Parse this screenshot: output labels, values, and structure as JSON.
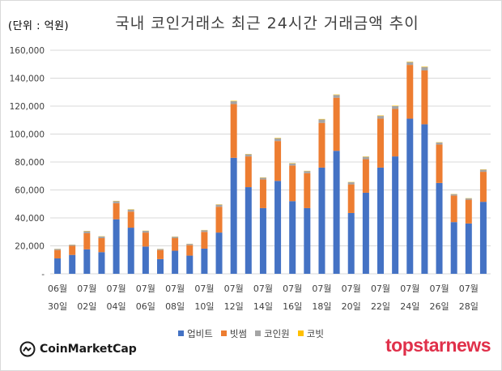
{
  "chart_data": {
    "type": "bar",
    "stacked": true,
    "title": "국내 코인거래소 최근 24시간 거래금액 추이",
    "unit_label": "(단위 : 억원)",
    "ylim": [
      0,
      160000
    ],
    "yticks": [
      0,
      20000,
      40000,
      60000,
      80000,
      100000,
      120000,
      140000,
      160000
    ],
    "ytick_labels": [
      "-",
      "20,000",
      "40,000",
      "60,000",
      "80,000",
      "100,000",
      "120,000",
      "140,000",
      "160,000"
    ],
    "grid": true,
    "legend_position": "bottom",
    "x_tick_labels": [
      {
        "month": "06월",
        "day": "30일"
      },
      {
        "month": "07월",
        "day": "02일"
      },
      {
        "month": "07월",
        "day": "04일"
      },
      {
        "month": "07월",
        "day": "06일"
      },
      {
        "month": "07월",
        "day": "08일"
      },
      {
        "month": "07월",
        "day": "10일"
      },
      {
        "month": "07월",
        "day": "12일"
      },
      {
        "month": "07월",
        "day": "14일"
      },
      {
        "month": "07월",
        "day": "16일"
      },
      {
        "month": "07월",
        "day": "18일"
      },
      {
        "month": "07월",
        "day": "20일"
      },
      {
        "month": "07월",
        "day": "22일"
      },
      {
        "month": "07월",
        "day": "24일"
      },
      {
        "month": "07월",
        "day": "26일"
      },
      {
        "month": "07월",
        "day": "28일"
      }
    ],
    "categories": [
      "06-30",
      "07-01",
      "07-02",
      "07-03",
      "07-04",
      "07-05",
      "07-06",
      "07-07",
      "07-08",
      "07-09",
      "07-10",
      "07-11",
      "07-12",
      "07-13",
      "07-14",
      "07-15",
      "07-16",
      "07-17",
      "07-18",
      "07-19",
      "07-20",
      "07-21",
      "07-22",
      "07-23",
      "07-24",
      "07-25",
      "07-26",
      "07-27",
      "07-28",
      "07-29"
    ],
    "series": [
      {
        "name": "업비트",
        "color": "#4472c4",
        "values": [
          11000,
          13500,
          17500,
          15500,
          39000,
          33000,
          19500,
          10500,
          16500,
          13000,
          18000,
          29500,
          83000,
          62000,
          47000,
          66500,
          52000,
          47000,
          76000,
          88000,
          43500,
          58000,
          76000,
          84000,
          111000,
          107000,
          65000,
          37000,
          36000,
          51500
        ]
      },
      {
        "name": "빗썸",
        "color": "#ed7d31",
        "values": [
          6000,
          6500,
          11500,
          10000,
          11500,
          11500,
          10000,
          6500,
          9000,
          7500,
          12000,
          18500,
          38500,
          22000,
          20500,
          28500,
          25500,
          25000,
          32000,
          38000,
          20500,
          24000,
          35000,
          34000,
          38500,
          38500,
          27500,
          19000,
          17000,
          21500
        ]
      },
      {
        "name": "코인원",
        "color": "#a5a5a5",
        "values": [
          800,
          800,
          1500,
          1200,
          1500,
          1500,
          1200,
          700,
          1000,
          900,
          1200,
          1500,
          2000,
          1500,
          1300,
          2000,
          1500,
          1500,
          2500,
          2000,
          1500,
          1700,
          2000,
          2000,
          2000,
          2500,
          1500,
          1000,
          1000,
          1500
        ]
      },
      {
        "name": "코빗",
        "color": "#ffc000",
        "values": [
          100,
          100,
          200,
          150,
          200,
          200,
          150,
          100,
          150,
          100,
          150,
          200,
          300,
          200,
          200,
          300,
          250,
          200,
          300,
          300,
          200,
          250,
          300,
          300,
          300,
          300,
          200,
          150,
          150,
          200
        ]
      }
    ]
  },
  "branding": {
    "source": "CoinMarketCap",
    "watermark": "topstarnews"
  }
}
